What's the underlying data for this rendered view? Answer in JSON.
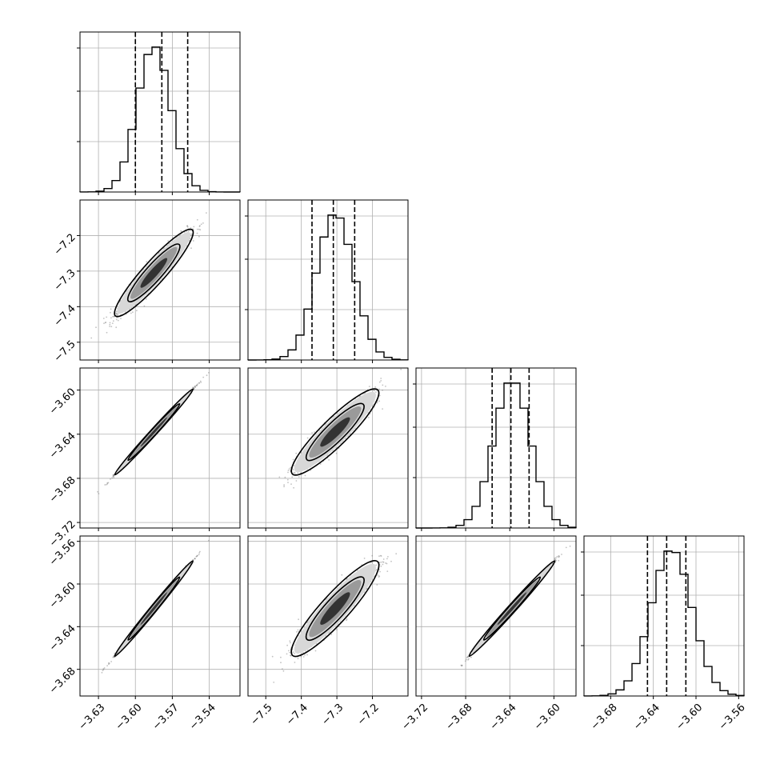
{
  "chart_data": {
    "type": "scatter",
    "subtype": "corner-plot",
    "title": "",
    "n_params": 4,
    "parameters": [
      {
        "name": "",
        "mean": -3.585,
        "sigma": 0.0135,
        "range": [
          -3.645,
          -3.515
        ],
        "ticks": [
          {
            "v": -3.63,
            "label": "−3.63"
          },
          {
            "v": -3.6,
            "label": "−3.60"
          },
          {
            "v": -3.57,
            "label": "−3.57"
          },
          {
            "v": -3.54,
            "label": "−3.54"
          }
        ],
        "quantiles": [
          -3.6,
          -3.5785,
          -3.5575
        ]
      },
      {
        "name": "",
        "mean": -7.305,
        "sigma": 0.052,
        "range": [
          -7.55,
          -7.1
        ],
        "ticks": [
          {
            "v": -7.5,
            "label": "−7.5"
          },
          {
            "v": -7.4,
            "label": "−7.4"
          },
          {
            "v": -7.3,
            "label": "−7.3"
          },
          {
            "v": -7.2,
            "label": "−7.2"
          }
        ],
        "quantiles": [
          -7.37,
          -7.31,
          -7.25
        ]
      },
      {
        "name": "",
        "mean": -3.638,
        "sigma": 0.0165,
        "range": [
          -3.725,
          -3.58
        ],
        "ticks": [
          {
            "v": -3.72,
            "label": "−3.72"
          },
          {
            "v": -3.68,
            "label": "−3.68"
          },
          {
            "v": -3.64,
            "label": "−3.64"
          },
          {
            "v": -3.6,
            "label": "−3.60"
          }
        ],
        "quantiles": [
          -3.656,
          -3.639,
          -3.6225
        ]
      },
      {
        "name": "",
        "mean": -3.623,
        "sigma": 0.019,
        "range": [
          -3.705,
          -3.555
        ],
        "ticks": [
          {
            "v": -3.68,
            "label": "−3.68"
          },
          {
            "v": -3.64,
            "label": "−3.64"
          },
          {
            "v": -3.6,
            "label": "−3.60"
          },
          {
            "v": -3.56,
            "label": "−3.56"
          }
        ],
        "quantiles": [
          -3.6455,
          -3.6275,
          -3.6095
        ]
      }
    ],
    "correlations": [
      [
        1,
        0.95,
        0.999,
        0.999
      ],
      [
        0.95,
        1,
        0.93,
        0.93
      ],
      [
        0.999,
        0.93,
        1,
        0.998
      ],
      [
        0.999,
        0.93,
        0.998,
        1
      ]
    ],
    "quantile_levels": [
      0.16,
      0.5,
      0.84
    ],
    "contour_levels_sigma": [
      1,
      2
    ],
    "grid": true,
    "legend": "none"
  }
}
